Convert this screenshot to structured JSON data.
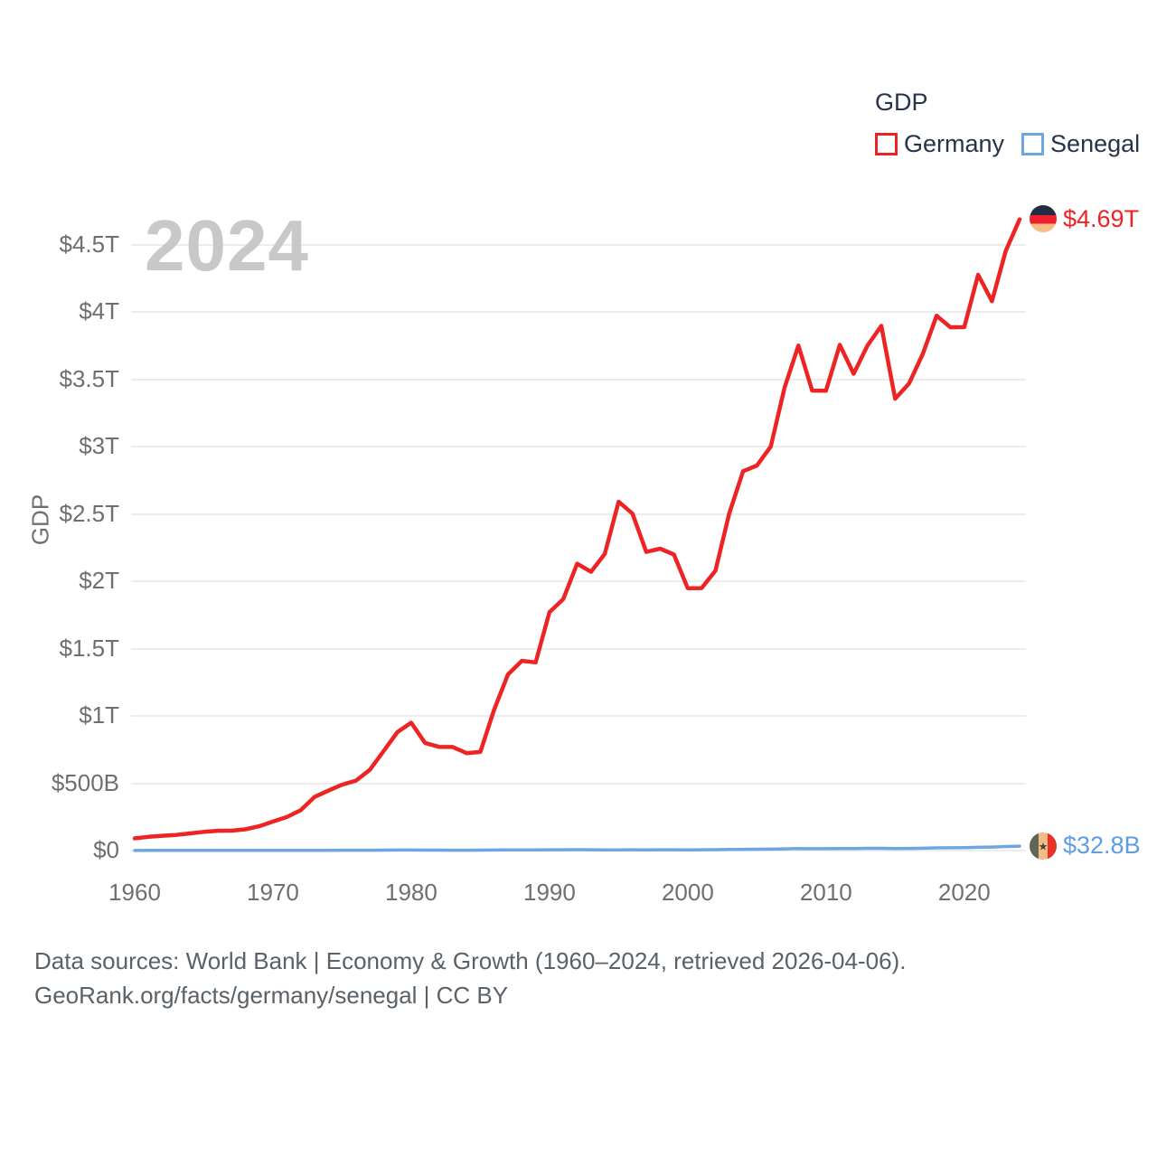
{
  "legend": {
    "title": "GDP",
    "items": [
      {
        "label": "Germany",
        "color": "#ee2424"
      },
      {
        "label": "Senegal",
        "color": "#6ea7e0"
      }
    ]
  },
  "watermark_year": "2024",
  "footer": {
    "line1": "Data sources: World Bank | Economy & Growth (1960–2024, retrieved 2026-04-06).",
    "line2": "GeoRank.org/facts/germany/senegal | CC BY"
  },
  "colors": {
    "germany_line": "#ee2424",
    "senegal_line": "#6ea7e0",
    "senegal_value_text": "#5d9de6",
    "axis_text": "#6f6f6f",
    "legend_text": "#26334a",
    "watermark": "#c8c8c8",
    "gridline": "#ececec",
    "footer_text": "#5a6268"
  },
  "chart_data": {
    "type": "line",
    "title": "GDP",
    "ylabel": "GDP",
    "xlabel": "",
    "grid": "horizontal",
    "legend_position": "top-right",
    "watermark_year": "2024",
    "x_years": [
      1960,
      1961,
      1962,
      1963,
      1964,
      1965,
      1966,
      1967,
      1968,
      1969,
      1970,
      1971,
      1972,
      1973,
      1974,
      1975,
      1976,
      1977,
      1978,
      1979,
      1980,
      1981,
      1982,
      1983,
      1984,
      1985,
      1986,
      1987,
      1988,
      1989,
      1990,
      1991,
      1992,
      1993,
      1994,
      1995,
      1996,
      1997,
      1998,
      1999,
      2000,
      2001,
      2002,
      2003,
      2004,
      2005,
      2006,
      2007,
      2008,
      2009,
      2010,
      2011,
      2012,
      2013,
      2014,
      2015,
      2016,
      2017,
      2018,
      2019,
      2020,
      2021,
      2022,
      2023,
      2024
    ],
    "xticks": [
      1960,
      1970,
      1980,
      1990,
      2000,
      2010,
      2020
    ],
    "yticks": [
      {
        "value_billions": 0,
        "label": "$0"
      },
      {
        "value_billions": 500,
        "label": "$500B"
      },
      {
        "value_billions": 1000,
        "label": "$1T"
      },
      {
        "value_billions": 1500,
        "label": "$1.5T"
      },
      {
        "value_billions": 2000,
        "label": "$2T"
      },
      {
        "value_billions": 2500,
        "label": "$2.5T"
      },
      {
        "value_billions": 3000,
        "label": "$3T"
      },
      {
        "value_billions": 3500,
        "label": "$3.5T"
      },
      {
        "value_billions": 4000,
        "label": "$4T"
      },
      {
        "value_billions": 4500,
        "label": "$4.5T"
      }
    ],
    "ylim_billions": [
      0,
      4750
    ],
    "series": [
      {
        "name": "Germany",
        "color": "#ee2424",
        "end_label": "$4.69T",
        "flag_icon": "germany-flag",
        "values_billions": [
          90.5,
          102.0,
          109.9,
          116.2,
          127.3,
          139.0,
          147.3,
          147.5,
          157.9,
          180.6,
          215.8,
          249.0,
          299.8,
          398.4,
          445.3,
          489.8,
          519.6,
          599.0,
          737.9,
          879.9,
          950.3,
          800.2,
          771.0,
          770.0,
          723.7,
          732.5,
          1047.8,
          1308.7,
          1409.7,
          1398.1,
          1771.7,
          1868.9,
          2131.6,
          2071.3,
          2205.1,
          2591.6,
          2503.7,
          2218.8,
          2243.2,
          2199.9,
          1948.8,
          1950.6,
          2079.1,
          2505.7,
          2819.2,
          2861.4,
          3002.4,
          3439.9,
          3752.4,
          3418.0,
          3417.1,
          3757.7,
          3543.0,
          3752.5,
          3898.7,
          3357.6,
          3469.9,
          3690.8,
          3974.4,
          3888.2,
          3889.7,
          4278.5,
          4082.5,
          4456.1,
          4690.0
        ]
      },
      {
        "name": "Senegal",
        "color": "#6ea7e0",
        "end_label": "$32.8B",
        "flag_icon": "senegal-flag",
        "values_billions": [
          1.0,
          1.05,
          1.1,
          1.15,
          1.2,
          1.22,
          1.26,
          1.3,
          1.35,
          1.32,
          1.42,
          1.46,
          1.7,
          1.97,
          2.3,
          2.75,
          2.82,
          2.78,
          3.17,
          3.73,
          3.83,
          3.33,
          3.13,
          2.93,
          2.8,
          3.07,
          4.31,
          5.24,
          5.45,
          5.27,
          6.2,
          6.06,
          6.57,
          6.01,
          4.4,
          5.55,
          5.71,
          5.42,
          5.82,
          6.06,
          5.69,
          5.99,
          6.57,
          8.35,
          9.58,
          10.29,
          10.95,
          12.83,
          15.03,
          14.34,
          14.08,
          15.62,
          15.66,
          16.54,
          17.05,
          15.05,
          16.06,
          17.74,
          20.19,
          20.79,
          21.66,
          24.46,
          25.95,
          29.95,
          32.8
        ]
      }
    ]
  }
}
